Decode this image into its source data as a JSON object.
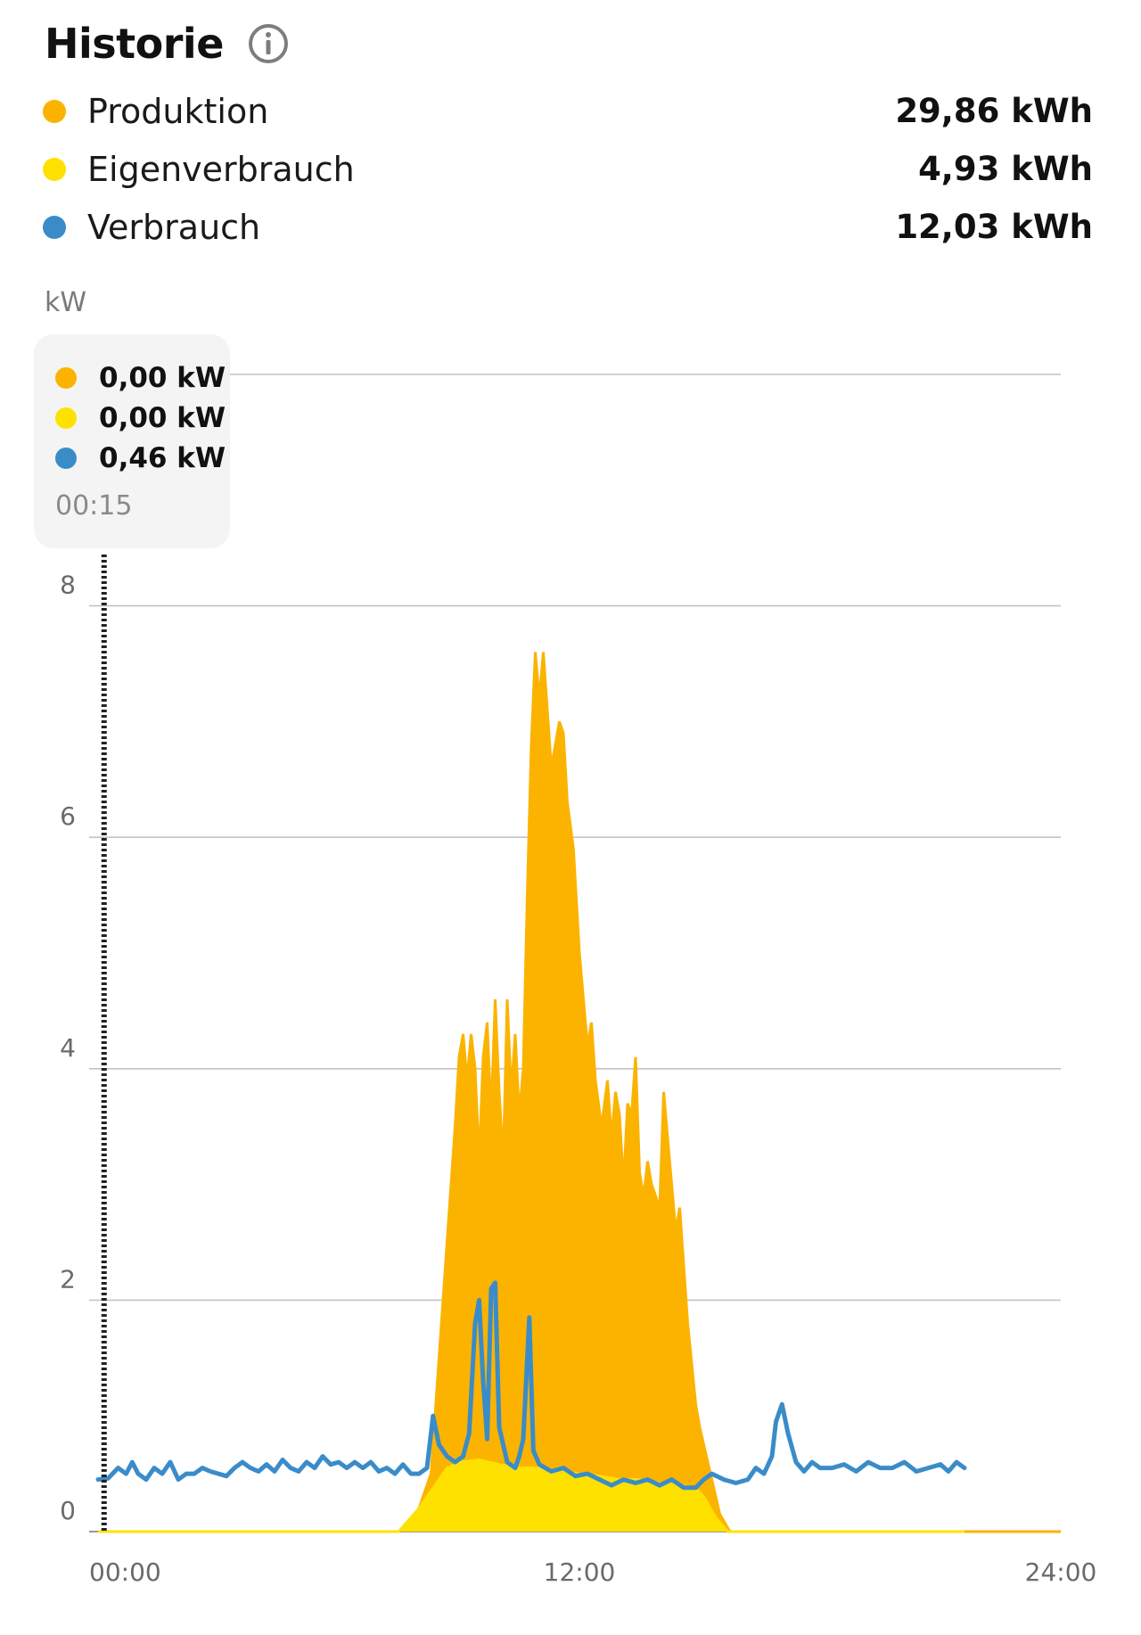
{
  "header": {
    "title": "Historie",
    "info_icon": "info-icon"
  },
  "legend": [
    {
      "name": "Produktion",
      "value": "29,86 kWh",
      "color": "#FBB300"
    },
    {
      "name": "Eigenverbrauch",
      "value": "4,93 kWh",
      "color": "#FFE100"
    },
    {
      "name": "Verbrauch",
      "value": "12,03 kWh",
      "color": "#3A8CC9"
    }
  ],
  "tooltip": {
    "values": [
      "0,00 kW",
      "0,00 kW",
      "0,46 kW"
    ],
    "time": "00:15"
  },
  "chart_data": {
    "type": "area",
    "ylabel": "kW",
    "ylim": [
      0,
      10
    ],
    "yticks": [
      0,
      2,
      4,
      6,
      8
    ],
    "ytick_labels": [
      "0",
      "2",
      "4",
      "6",
      "8"
    ],
    "xlim": [
      0,
      24
    ],
    "xticks": [
      0,
      12,
      24
    ],
    "xtick_labels": [
      "00:00",
      "12:00",
      "24:00"
    ],
    "grid": true,
    "cursor_x": 0.15,
    "series": [
      {
        "name": "Produktion",
        "type": "area",
        "color": "#FBB300",
        "points": [
          [
            0,
            0
          ],
          [
            7.5,
            0
          ],
          [
            8,
            0.2
          ],
          [
            8.3,
            0.5
          ],
          [
            8.5,
            1.5
          ],
          [
            8.7,
            2.5
          ],
          [
            8.9,
            3.5
          ],
          [
            9.0,
            4.1
          ],
          [
            9.1,
            4.3
          ],
          [
            9.2,
            3.9
          ],
          [
            9.3,
            4.3
          ],
          [
            9.4,
            4.0
          ],
          [
            9.5,
            3.2
          ],
          [
            9.6,
            4.1
          ],
          [
            9.7,
            4.4
          ],
          [
            9.8,
            3.6
          ],
          [
            9.9,
            4.6
          ],
          [
            10.0,
            3.8
          ],
          [
            10.1,
            3.2
          ],
          [
            10.2,
            4.6
          ],
          [
            10.3,
            3.8
          ],
          [
            10.4,
            4.3
          ],
          [
            10.5,
            3.6
          ],
          [
            10.6,
            4.0
          ],
          [
            10.7,
            5.5
          ],
          [
            10.8,
            6.8
          ],
          [
            10.9,
            7.6
          ],
          [
            11.0,
            7.2
          ],
          [
            11.1,
            7.6
          ],
          [
            11.3,
            6.6
          ],
          [
            11.5,
            7.0
          ],
          [
            11.6,
            6.9
          ],
          [
            11.7,
            6.3
          ],
          [
            11.85,
            5.9
          ],
          [
            12.0,
            5.0
          ],
          [
            12.2,
            4.2
          ],
          [
            12.3,
            4.4
          ],
          [
            12.4,
            3.9
          ],
          [
            12.55,
            3.5
          ],
          [
            12.7,
            3.9
          ],
          [
            12.8,
            3.4
          ],
          [
            12.9,
            3.8
          ],
          [
            13.0,
            3.6
          ],
          [
            13.1,
            3.0
          ],
          [
            13.2,
            3.7
          ],
          [
            13.3,
            3.6
          ],
          [
            13.4,
            4.1
          ],
          [
            13.5,
            3.1
          ],
          [
            13.6,
            2.9
          ],
          [
            13.7,
            3.2
          ],
          [
            13.8,
            3.0
          ],
          [
            13.9,
            2.9
          ],
          [
            14.0,
            2.8
          ],
          [
            14.1,
            3.8
          ],
          [
            14.2,
            3.4
          ],
          [
            14.3,
            3.0
          ],
          [
            14.4,
            2.6
          ],
          [
            14.5,
            2.8
          ],
          [
            14.7,
            1.8
          ],
          [
            14.9,
            1.1
          ],
          [
            15.0,
            0.9
          ],
          [
            15.2,
            0.6
          ],
          [
            15.5,
            0.15
          ],
          [
            15.75,
            0
          ],
          [
            24,
            0
          ]
        ]
      },
      {
        "name": "Eigenverbrauch",
        "type": "area",
        "color": "#FFE100",
        "points": [
          [
            0,
            0
          ],
          [
            7.5,
            0
          ],
          [
            8.0,
            0.2
          ],
          [
            8.5,
            0.45
          ],
          [
            8.7,
            0.55
          ],
          [
            9.0,
            0.6
          ],
          [
            9.5,
            0.62
          ],
          [
            10.0,
            0.58
          ],
          [
            10.5,
            0.55
          ],
          [
            11.0,
            0.55
          ],
          [
            11.5,
            0.52
          ],
          [
            12.0,
            0.5
          ],
          [
            12.5,
            0.48
          ],
          [
            13.0,
            0.45
          ],
          [
            13.5,
            0.45
          ],
          [
            14.0,
            0.42
          ],
          [
            14.5,
            0.4
          ],
          [
            14.9,
            0.38
          ],
          [
            15.1,
            0.3
          ],
          [
            15.4,
            0.12
          ],
          [
            15.7,
            0
          ],
          [
            21.6,
            0
          ]
        ]
      },
      {
        "name": "Verbrauch",
        "type": "line",
        "color": "#3A8CC9",
        "points": [
          [
            0,
            0.45
          ],
          [
            0.25,
            0.46
          ],
          [
            0.5,
            0.55
          ],
          [
            0.7,
            0.5
          ],
          [
            0.85,
            0.6
          ],
          [
            1.0,
            0.5
          ],
          [
            1.2,
            0.45
          ],
          [
            1.4,
            0.55
          ],
          [
            1.6,
            0.5
          ],
          [
            1.8,
            0.6
          ],
          [
            2.0,
            0.45
          ],
          [
            2.2,
            0.5
          ],
          [
            2.4,
            0.5
          ],
          [
            2.6,
            0.55
          ],
          [
            2.8,
            0.52
          ],
          [
            3.0,
            0.5
          ],
          [
            3.2,
            0.48
          ],
          [
            3.4,
            0.55
          ],
          [
            3.6,
            0.6
          ],
          [
            3.8,
            0.55
          ],
          [
            4.0,
            0.52
          ],
          [
            4.2,
            0.58
          ],
          [
            4.4,
            0.52
          ],
          [
            4.6,
            0.62
          ],
          [
            4.8,
            0.55
          ],
          [
            5.0,
            0.52
          ],
          [
            5.2,
            0.6
          ],
          [
            5.4,
            0.55
          ],
          [
            5.6,
            0.65
          ],
          [
            5.8,
            0.58
          ],
          [
            6.0,
            0.6
          ],
          [
            6.2,
            0.55
          ],
          [
            6.4,
            0.6
          ],
          [
            6.6,
            0.55
          ],
          [
            6.8,
            0.6
          ],
          [
            7.0,
            0.52
          ],
          [
            7.2,
            0.55
          ],
          [
            7.4,
            0.5
          ],
          [
            7.6,
            0.58
          ],
          [
            7.8,
            0.5
          ],
          [
            8.0,
            0.5
          ],
          [
            8.2,
            0.55
          ],
          [
            8.35,
            1.0
          ],
          [
            8.5,
            0.75
          ],
          [
            8.7,
            0.65
          ],
          [
            8.9,
            0.6
          ],
          [
            9.1,
            0.65
          ],
          [
            9.25,
            0.85
          ],
          [
            9.4,
            1.8
          ],
          [
            9.5,
            2.0
          ],
          [
            9.6,
            1.3
          ],
          [
            9.7,
            0.8
          ],
          [
            9.8,
            2.1
          ],
          [
            9.9,
            2.15
          ],
          [
            10.0,
            0.9
          ],
          [
            10.2,
            0.6
          ],
          [
            10.4,
            0.55
          ],
          [
            10.5,
            0.65
          ],
          [
            10.6,
            0.8
          ],
          [
            10.75,
            1.85
          ],
          [
            10.85,
            0.7
          ],
          [
            11.0,
            0.58
          ],
          [
            11.3,
            0.52
          ],
          [
            11.6,
            0.55
          ],
          [
            11.9,
            0.48
          ],
          [
            12.2,
            0.5
          ],
          [
            12.5,
            0.45
          ],
          [
            12.8,
            0.4
          ],
          [
            13.1,
            0.45
          ],
          [
            13.4,
            0.42
          ],
          [
            13.7,
            0.45
          ],
          [
            14.0,
            0.4
          ],
          [
            14.3,
            0.45
          ],
          [
            14.6,
            0.38
          ],
          [
            14.9,
            0.38
          ],
          [
            15.1,
            0.45
          ],
          [
            15.3,
            0.5
          ],
          [
            15.6,
            0.45
          ],
          [
            15.9,
            0.42
          ],
          [
            16.2,
            0.45
          ],
          [
            16.4,
            0.55
          ],
          [
            16.6,
            0.5
          ],
          [
            16.8,
            0.65
          ],
          [
            16.9,
            0.95
          ],
          [
            17.05,
            1.1
          ],
          [
            17.2,
            0.85
          ],
          [
            17.4,
            0.6
          ],
          [
            17.6,
            0.52
          ],
          [
            17.8,
            0.6
          ],
          [
            18.0,
            0.55
          ],
          [
            18.3,
            0.55
          ],
          [
            18.6,
            0.58
          ],
          [
            18.9,
            0.52
          ],
          [
            19.2,
            0.6
          ],
          [
            19.5,
            0.55
          ],
          [
            19.8,
            0.55
          ],
          [
            20.1,
            0.6
          ],
          [
            20.4,
            0.52
          ],
          [
            20.7,
            0.55
          ],
          [
            21.0,
            0.58
          ],
          [
            21.2,
            0.52
          ],
          [
            21.4,
            0.6
          ],
          [
            21.6,
            0.55
          ]
        ]
      }
    ]
  }
}
